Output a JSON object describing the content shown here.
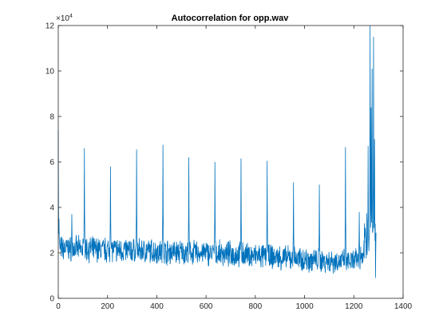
{
  "chart_data": {
    "type": "line",
    "title": "Autocorrelation for opp.wav",
    "xlabel": "",
    "ylabel": "",
    "xlim": [
      0,
      1400
    ],
    "ylim": [
      0,
      120000
    ],
    "y_exponent_label": {
      "base": "×10",
      "exp": "4"
    },
    "xticks": [
      0,
      200,
      400,
      600,
      800,
      1000,
      1200,
      1400
    ],
    "xtick_labels": [
      "0",
      "200",
      "400",
      "600",
      "800",
      "1000",
      "1200",
      "1400"
    ],
    "yticks": [
      0,
      20000,
      40000,
      60000,
      80000,
      100000,
      120000
    ],
    "ytick_labels": [
      "0",
      "2",
      "4",
      "6",
      "8",
      "10",
      "12"
    ],
    "grid": false,
    "colors": {
      "line": "#0072bd",
      "axes": "#262626",
      "background": "#ffffff"
    },
    "series": [
      {
        "x_start": 0,
        "x_end": 1290,
        "baseline_trend": [
          [
            0,
            22000
          ],
          [
            300,
            21000
          ],
          [
            700,
            19500
          ],
          [
            1000,
            17000
          ],
          [
            1200,
            16000
          ],
          [
            1240,
            19000
          ]
        ],
        "peaks": [
          [
            0,
            74000
          ],
          [
            3,
            35000
          ],
          [
            55,
            37000
          ],
          [
            106,
            66000
          ],
          [
            212,
            58000
          ],
          [
            318,
            65500
          ],
          [
            425,
            67500
          ],
          [
            530,
            62000
          ],
          [
            636,
            60000
          ],
          [
            742,
            61500
          ],
          [
            848,
            60500
          ],
          [
            955,
            51000
          ],
          [
            1060,
            50000
          ],
          [
            1166,
            66500
          ],
          [
            1222,
            38000
          ],
          [
            1258,
            67000
          ],
          [
            1266,
            120000
          ],
          [
            1270,
            84000
          ],
          [
            1274,
            101000
          ],
          [
            1280,
            115000
          ],
          [
            1284,
            70000
          ],
          [
            1288,
            9000
          ]
        ]
      }
    ]
  }
}
